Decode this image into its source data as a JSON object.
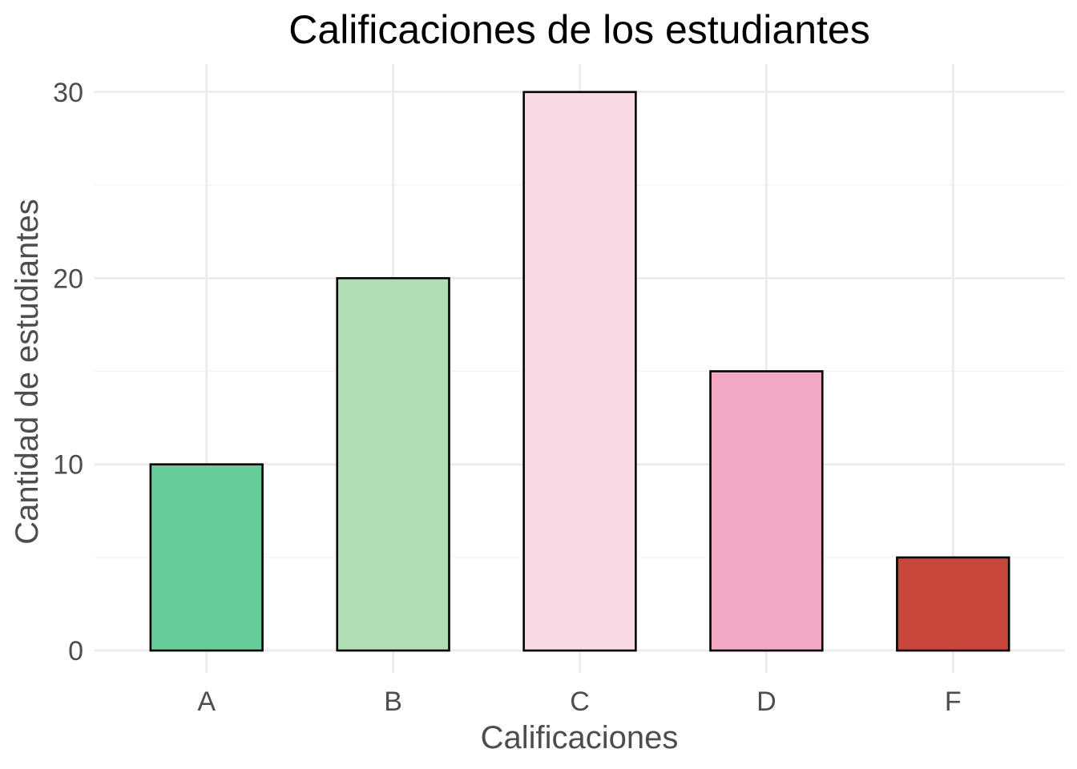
{
  "chart_data": {
    "type": "bar",
    "title": "Calificaciones de los estudiantes",
    "xlabel": "Calificaciones",
    "ylabel": "Cantidad de estudiantes",
    "categories": [
      "A",
      "B",
      "C",
      "D",
      "F"
    ],
    "values": [
      10,
      20,
      30,
      15,
      5
    ],
    "colors": [
      "#66CC99",
      "#B0DDB4",
      "#FAD9E6",
      "#F2A8C5",
      "#C8473D"
    ],
    "ylim": [
      -1.2,
      31.5
    ],
    "yticks": [
      0,
      10,
      20,
      30
    ],
    "grid": true,
    "legend": "none"
  }
}
